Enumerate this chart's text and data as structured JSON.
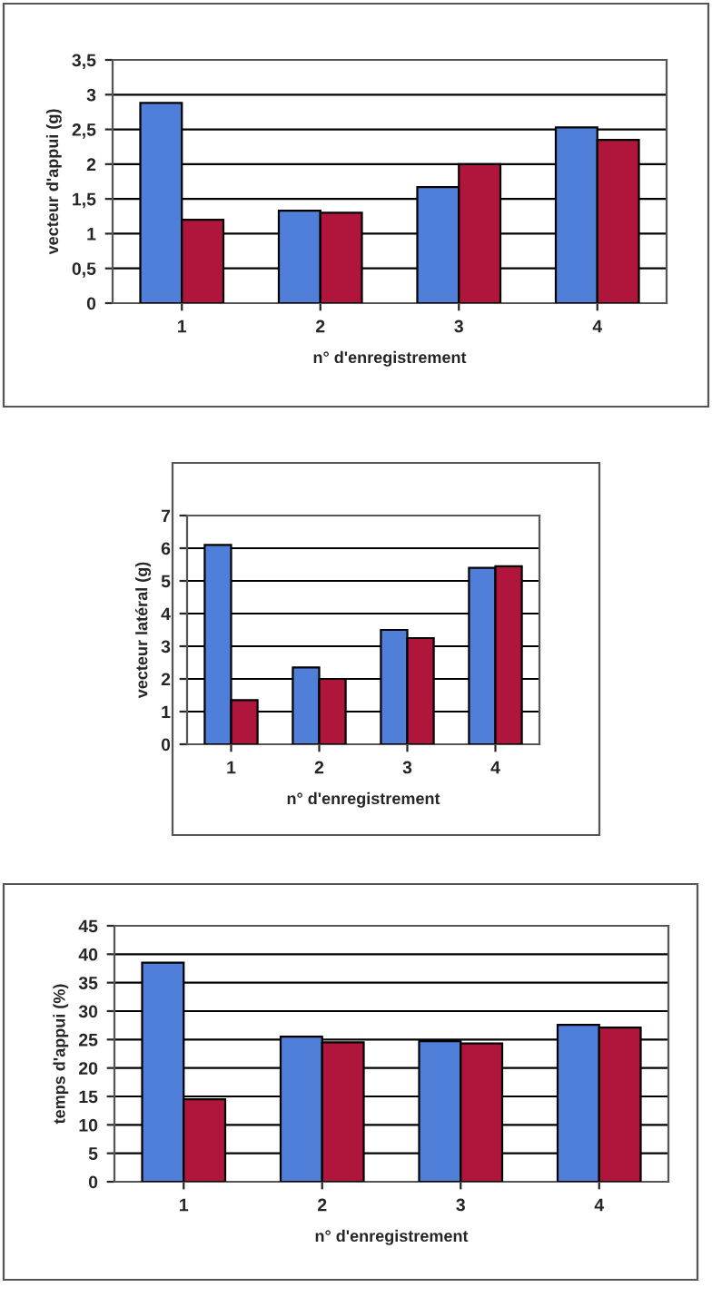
{
  "chart_data": [
    {
      "type": "bar",
      "xlabel": "n° d'enregistrement",
      "ylabel": "vecteur d'appui (g)",
      "categories": [
        "1",
        "2",
        "3",
        "4"
      ],
      "series": [
        {
          "color": "#4f7fd8",
          "values": [
            2.88,
            1.33,
            1.67,
            2.53
          ]
        },
        {
          "color": "#b0163c",
          "values": [
            1.2,
            1.3,
            2.0,
            2.35
          ]
        }
      ],
      "ylim": [
        0,
        3.5
      ],
      "yticks": [
        0,
        {
          "value": 0.5,
          "label": "0,5"
        },
        1,
        {
          "value": 1.5,
          "label": "1,5"
        },
        2,
        {
          "value": 2.5,
          "label": "2,5"
        },
        3,
        {
          "value": 3.5,
          "label": "3,5"
        }
      ],
      "grid": "y"
    },
    {
      "type": "bar",
      "xlabel": "n° d'enregistrement",
      "ylabel": "vecteur latéral (g)",
      "categories": [
        "1",
        "2",
        "3",
        "4"
      ],
      "series": [
        {
          "color": "#4f7fd8",
          "values": [
            6.1,
            2.35,
            3.5,
            5.4
          ]
        },
        {
          "color": "#b0163c",
          "values": [
            1.35,
            2.0,
            3.25,
            5.45
          ]
        }
      ],
      "ylim": [
        0,
        7
      ],
      "yticks": [
        0,
        1,
        2,
        3,
        4,
        5,
        6,
        7
      ],
      "grid": "y"
    },
    {
      "type": "bar",
      "xlabel": "n° d'enregistrement",
      "ylabel": "temps d'appui (%)",
      "categories": [
        "1",
        "2",
        "3",
        "4"
      ],
      "series": [
        {
          "color": "#4f7fd8",
          "values": [
            38.5,
            25.5,
            24.7,
            27.6
          ]
        },
        {
          "color": "#b0163c",
          "values": [
            14.5,
            24.5,
            24.3,
            27.1
          ]
        }
      ],
      "ylim": [
        0,
        45
      ],
      "yticks": [
        0,
        5,
        10,
        15,
        20,
        25,
        30,
        35,
        40,
        45
      ],
      "grid": "y"
    }
  ]
}
